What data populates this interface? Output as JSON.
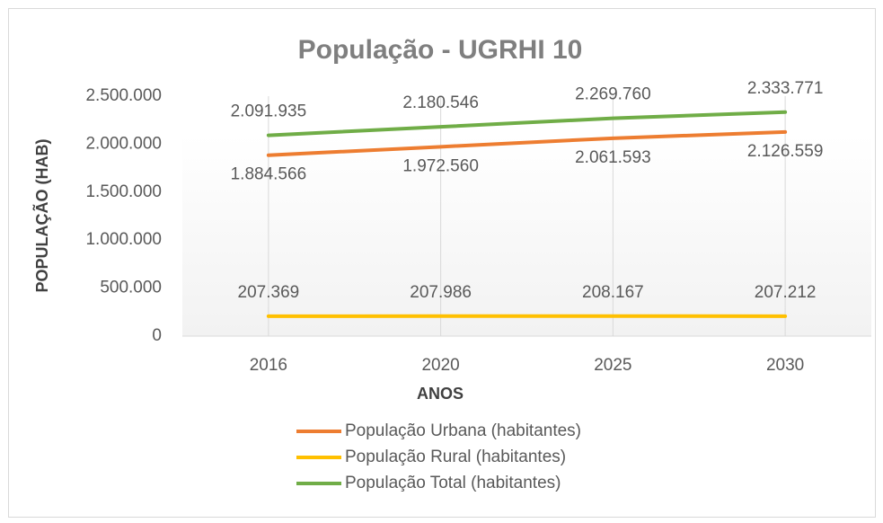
{
  "chart_data": {
    "type": "line",
    "title": "População - UGRHI 10",
    "x_label": "ANOS",
    "y_label": "POPULAÇÃO (HAB)",
    "categories": [
      "2016",
      "2020",
      "2025",
      "2030"
    ],
    "series": [
      {
        "name": "População Urbana (habitantes)",
        "color": "#ed7d31",
        "label_position": "below",
        "values": [
          1884566,
          1972560,
          2061593,
          2126559
        ],
        "value_labels": [
          "1.884.566",
          "1.972.560",
          "2.061.593",
          "2.126.559"
        ]
      },
      {
        "name": "População Rural (habitantes)",
        "color": "#ffc000",
        "label_position": "above",
        "values": [
          207369,
          207986,
          208167,
          207212
        ],
        "value_labels": [
          "207.369",
          "207.986",
          "208.167",
          "207.212"
        ]
      },
      {
        "name": "População Total (habitantes)",
        "color": "#70ad47",
        "label_position": "above",
        "values": [
          2091935,
          2180546,
          2269760,
          2333771
        ],
        "value_labels": [
          "2.091.935",
          "2.180.546",
          "2.269.760",
          "2.333.771"
        ]
      }
    ],
    "ylim": [
      0,
      2500000
    ],
    "yticks": [
      0,
      {
        "value": 500000,
        "label": "500.000"
      },
      {
        "value": 1000000,
        "label": "1.000.000"
      },
      {
        "value": 1500000,
        "label": "1.500.000"
      },
      {
        "value": 2000000,
        "label": "2.000.000"
      },
      {
        "value": 2500000,
        "label": "2.500.000"
      }
    ],
    "grid": "x",
    "legend": "bottom"
  }
}
